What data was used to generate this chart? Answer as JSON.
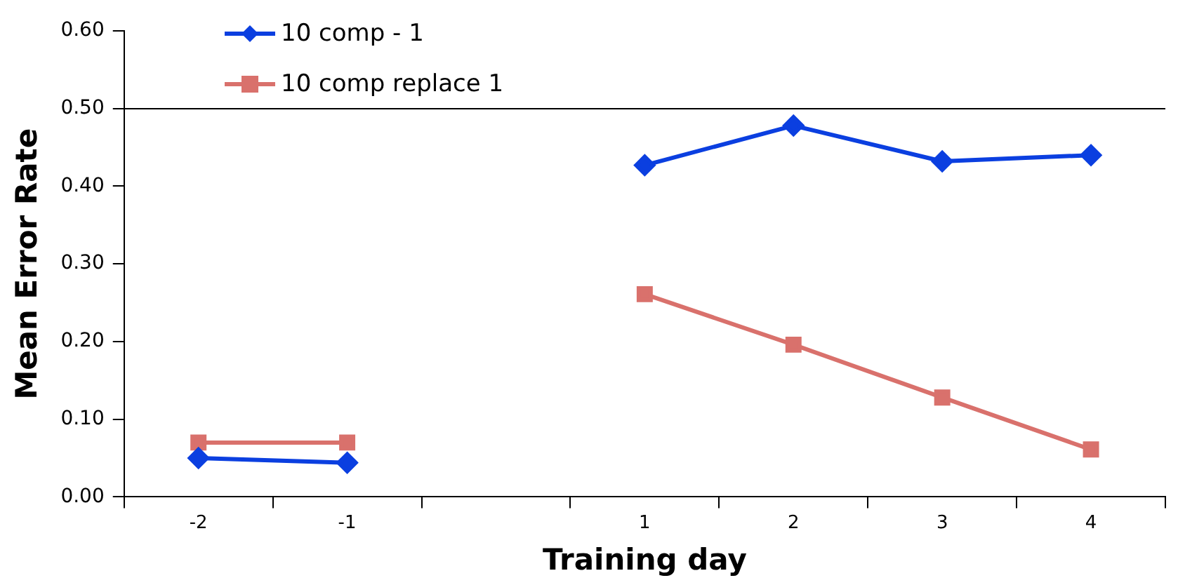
{
  "chart_data": {
    "type": "line",
    "xlabel": "Training day",
    "ylabel": "Mean Error Rate",
    "categories": [
      "-2",
      "-1",
      null,
      "1",
      "2",
      "3",
      "4"
    ],
    "series": [
      {
        "name": "10 comp - 1",
        "color": "#0b3fe0",
        "marker": "diamond",
        "values": [
          0.05,
          0.044,
          null,
          0.427,
          0.478,
          0.432,
          0.44
        ]
      },
      {
        "name": "10 comp replace 1",
        "color": "#d9716c",
        "marker": "square",
        "values": [
          0.07,
          0.07,
          null,
          0.261,
          0.196,
          0.128,
          0.061
        ]
      }
    ],
    "ylim": [
      0,
      0.6
    ],
    "yticks": [
      {
        "value": 0,
        "label": "0.00"
      },
      {
        "value": 0.1,
        "label": "0.10"
      },
      {
        "value": 0.2,
        "label": "0.20"
      },
      {
        "value": 0.3,
        "label": "0.30"
      },
      {
        "value": 0.4,
        "label": "0.40"
      },
      {
        "value": 0.5,
        "label": "0.50"
      },
      {
        "value": 0.6,
        "label": "0.60"
      }
    ],
    "ref_lines": [
      {
        "axis": "y",
        "value": 0.5,
        "color": "#000000"
      }
    ],
    "grid": false,
    "legend": "top left"
  }
}
